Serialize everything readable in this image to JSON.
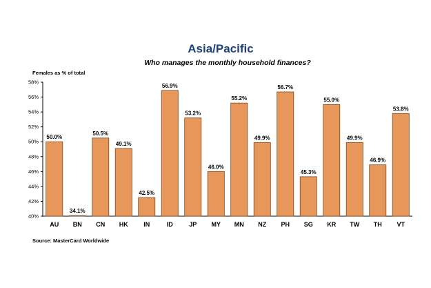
{
  "chart_data": {
    "type": "bar",
    "title": "Asia/Pacific",
    "subtitle": "Who manages the monthly household finances?",
    "ylabel": "Females as % of total",
    "xlabel": "",
    "categories": [
      "AU",
      "BN",
      "CN",
      "HK",
      "IN",
      "ID",
      "JP",
      "MY",
      "MN",
      "NZ",
      "PH",
      "SG",
      "KR",
      "TW",
      "TH",
      "VT"
    ],
    "values": [
      50.0,
      34.1,
      50.5,
      49.1,
      42.5,
      56.9,
      53.2,
      46.0,
      55.2,
      49.9,
      56.7,
      45.3,
      55.0,
      49.9,
      46.9,
      53.8
    ],
    "value_labels": [
      "50.0%",
      "34.1%",
      "50.5%",
      "49.1%",
      "42.5%",
      "56.9%",
      "53.2%",
      "46.0%",
      "55.2%",
      "49.9%",
      "56.7%",
      "45.3%",
      "55.0%",
      "49.9%",
      "46.9%",
      "53.8%"
    ],
    "ylim": [
      40,
      58
    ],
    "yticks": [
      40,
      42,
      44,
      46,
      48,
      50,
      52,
      54,
      56,
      58
    ],
    "ytick_labels": [
      "40%",
      "42%",
      "44%",
      "46%",
      "48%",
      "50%",
      "52%",
      "54%",
      "56%",
      "58%"
    ],
    "source": "Source: MasterCard Worldwide",
    "bar_color": "#e8975a",
    "bar_edge_color": "#7a4a24",
    "title_color": "#1f3f7a",
    "grid": false,
    "legend": "none"
  }
}
